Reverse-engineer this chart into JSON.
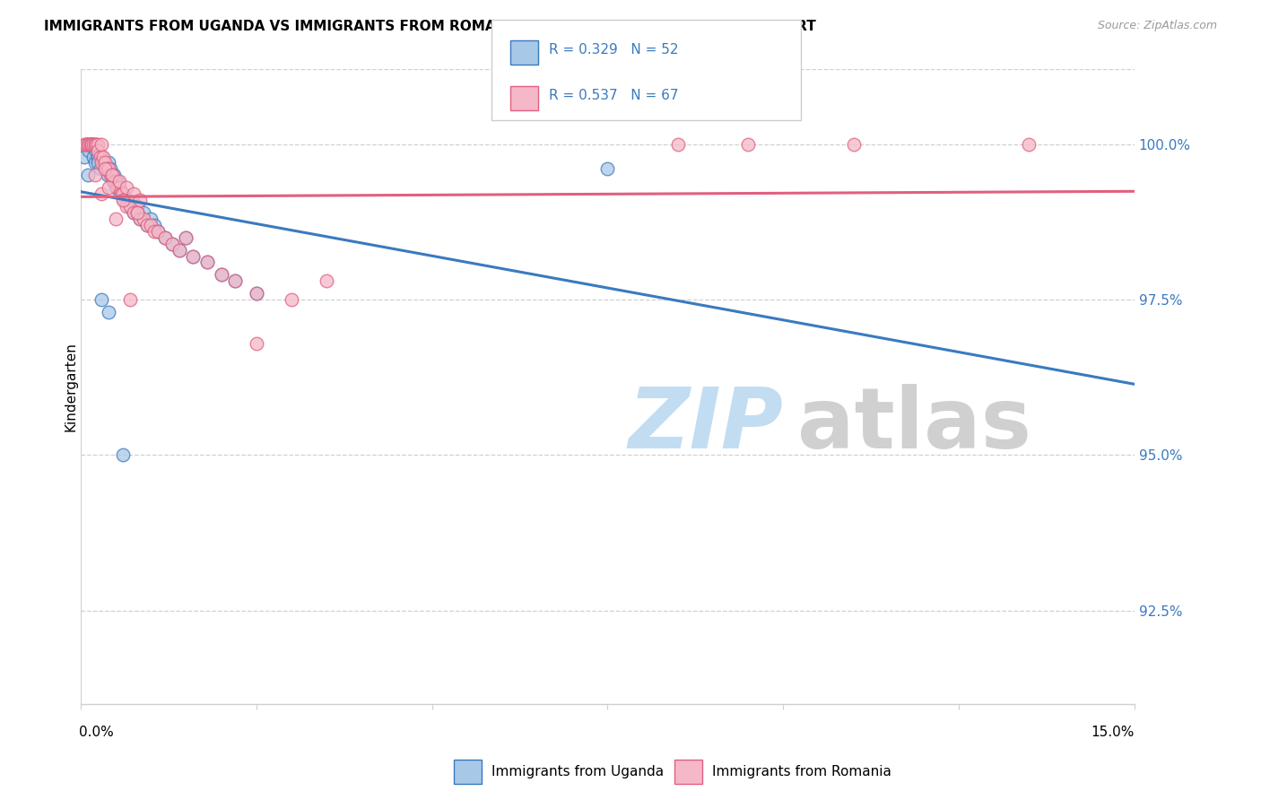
{
  "title": "IMMIGRANTS FROM UGANDA VS IMMIGRANTS FROM ROMANIA KINDERGARTEN CORRELATION CHART",
  "source": "Source: ZipAtlas.com",
  "ylabel": "Kindergarten",
  "xlim": [
    0.0,
    15.0
  ],
  "ylim": [
    91.0,
    101.2
  ],
  "R_uganda": 0.329,
  "N_uganda": 52,
  "R_romania": 0.537,
  "N_romania": 67,
  "color_uganda": "#a8c8e8",
  "color_romania": "#f4b8c8",
  "color_uganda_line": "#3a7abf",
  "color_romania_line": "#e06080",
  "legend_uganda": "Immigrants from Uganda",
  "legend_romania": "Immigrants from Romania",
  "uganda_x": [
    0.05,
    0.08,
    0.1,
    0.1,
    0.12,
    0.14,
    0.15,
    0.16,
    0.18,
    0.2,
    0.2,
    0.22,
    0.24,
    0.25,
    0.28,
    0.3,
    0.32,
    0.35,
    0.38,
    0.4,
    0.42,
    0.44,
    0.46,
    0.48,
    0.5,
    0.52,
    0.55,
    0.58,
    0.6,
    0.65,
    0.7,
    0.75,
    0.8,
    0.85,
    0.9,
    0.95,
    1.0,
    1.05,
    1.1,
    1.2,
    1.3,
    1.4,
    1.5,
    1.6,
    1.8,
    2.0,
    2.2,
    2.5,
    0.3,
    0.4,
    0.6,
    7.5
  ],
  "uganda_y": [
    99.8,
    100.0,
    100.0,
    99.5,
    99.9,
    100.0,
    100.0,
    100.0,
    99.8,
    100.0,
    99.7,
    99.9,
    99.8,
    99.7,
    99.6,
    99.8,
    99.7,
    99.6,
    99.5,
    99.7,
    99.6,
    99.5,
    99.4,
    99.5,
    99.3,
    99.4,
    99.3,
    99.2,
    99.2,
    99.1,
    99.0,
    98.9,
    99.0,
    98.8,
    98.9,
    98.7,
    98.8,
    98.7,
    98.6,
    98.5,
    98.4,
    98.3,
    98.5,
    98.2,
    98.1,
    97.9,
    97.8,
    97.6,
    97.5,
    97.3,
    95.0,
    99.6
  ],
  "romania_x": [
    0.05,
    0.08,
    0.1,
    0.12,
    0.14,
    0.15,
    0.16,
    0.18,
    0.2,
    0.22,
    0.24,
    0.25,
    0.28,
    0.3,
    0.3,
    0.32,
    0.35,
    0.38,
    0.4,
    0.42,
    0.45,
    0.48,
    0.5,
    0.52,
    0.55,
    0.58,
    0.6,
    0.62,
    0.65,
    0.7,
    0.75,
    0.8,
    0.85,
    0.9,
    0.95,
    1.0,
    1.05,
    1.1,
    1.2,
    1.3,
    1.4,
    1.5,
    1.6,
    1.8,
    2.0,
    2.2,
    2.5,
    3.0,
    3.5,
    0.3,
    0.5,
    0.7,
    8.5,
    9.5,
    11.0,
    13.5,
    0.2,
    0.4,
    0.6,
    0.8,
    2.5,
    0.35,
    0.45,
    0.55,
    0.65,
    0.75,
    0.85
  ],
  "romania_y": [
    100.0,
    100.0,
    100.0,
    100.0,
    100.0,
    100.0,
    100.0,
    100.0,
    100.0,
    100.0,
    100.0,
    99.9,
    99.8,
    100.0,
    99.7,
    99.8,
    99.7,
    99.6,
    99.6,
    99.5,
    99.5,
    99.4,
    99.4,
    99.3,
    99.3,
    99.2,
    99.2,
    99.1,
    99.0,
    99.0,
    98.9,
    98.9,
    98.8,
    98.8,
    98.7,
    98.7,
    98.6,
    98.6,
    98.5,
    98.4,
    98.3,
    98.5,
    98.2,
    98.1,
    97.9,
    97.8,
    97.6,
    97.5,
    97.8,
    99.2,
    98.8,
    97.5,
    100.0,
    100.0,
    100.0,
    100.0,
    99.5,
    99.3,
    99.1,
    98.9,
    96.8,
    99.6,
    99.5,
    99.4,
    99.3,
    99.2,
    99.1
  ]
}
